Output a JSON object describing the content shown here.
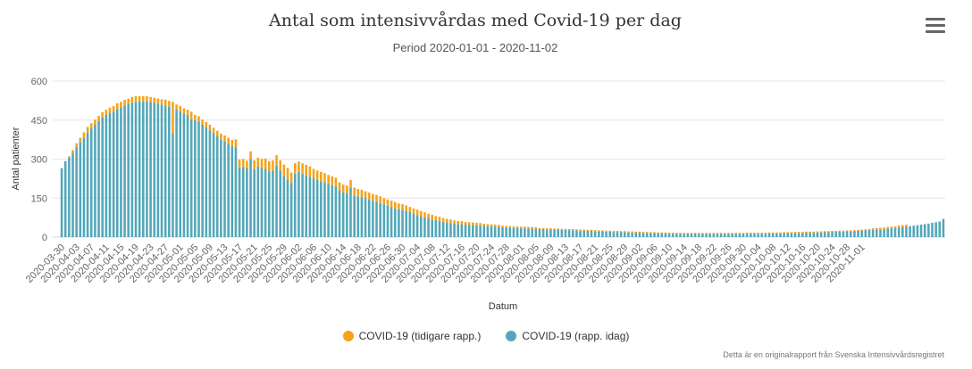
{
  "title": "Antal som intensivvårdas med Covid-19 per dag",
  "subtitle": "Period 2020-01-01 - 2020-11-02",
  "credit": "Detta är en originalrapport från Svenska Intensivvårdsregistret",
  "menu_icon": "hamburger-menu-icon",
  "colors": {
    "earlier": "#f7a21b",
    "today": "#53a7b9",
    "grid": "#e6e6e6",
    "axis_text": "#666666"
  },
  "chart_data": {
    "type": "bar",
    "stacked": true,
    "title": "Antal som intensivvårdas med Covid-19 per dag",
    "subtitle": "Period 2020-01-01 - 2020-11-02",
    "xlabel": "Datum",
    "ylabel": "Antal patienter",
    "ylim": [
      0,
      600
    ],
    "yticks": [
      0,
      150,
      300,
      450,
      600
    ],
    "grid": true,
    "legend_position": "bottom-center",
    "start_date": "2020-03-30",
    "end_date": "2020-11-02",
    "x_tick_labels": [
      "2020-03-30",
      "2020-04-03",
      "2020-04-07",
      "2020-04-11",
      "2020-04-15",
      "2020-04-19",
      "2020-04-23",
      "2020-04-27",
      "2020-05-01",
      "2020-05-05",
      "2020-05-09",
      "2020-05-13",
      "2020-05-17",
      "2020-05-21",
      "2020-05-25",
      "2020-05-29",
      "2020-06-02",
      "2020-06-06",
      "2020-06-10",
      "2020-06-14",
      "2020-06-18",
      "2020-06-22",
      "2020-06-26",
      "2020-06-30",
      "2020-07-04",
      "2020-07-08",
      "2020-07-12",
      "2020-07-16",
      "2020-07-20",
      "2020-07-24",
      "2020-07-28",
      "2020-08-01",
      "2020-08-05",
      "2020-08-09",
      "2020-08-13",
      "2020-08-17",
      "2020-08-21",
      "2020-08-25",
      "2020-08-29",
      "2020-09-02",
      "2020-09-06",
      "2020-09-10",
      "2020-09-14",
      "2020-09-18",
      "2020-09-22",
      "2020-09-26",
      "2020-09-30",
      "2020-10-04",
      "2020-10-08",
      "2020-10-12",
      "2020-10-16",
      "2020-10-20",
      "2020-10-24",
      "2020-10-28",
      "2020-11-01"
    ],
    "series": [
      {
        "name": "COVID-19 (tidigare rapp.)",
        "color": "#f7a21b",
        "values": [
          0,
          0,
          6,
          10,
          14,
          16,
          20,
          22,
          20,
          20,
          20,
          20,
          20,
          20,
          22,
          22,
          20,
          22,
          20,
          22,
          22,
          20,
          20,
          20,
          20,
          20,
          20,
          20,
          22,
          22,
          120,
          20,
          20,
          20,
          20,
          30,
          20,
          20,
          20,
          20,
          22,
          20,
          20,
          24,
          24,
          24,
          24,
          30,
          30,
          30,
          30,
          30,
          34,
          34,
          34,
          40,
          40,
          40,
          40,
          40,
          44,
          44,
          40,
          40,
          40,
          40,
          40,
          40,
          36,
          36,
          36,
          36,
          34,
          34,
          34,
          30,
          30,
          30,
          30,
          30,
          28,
          28,
          26,
          26,
          26,
          26,
          26,
          24,
          24,
          24,
          24,
          22,
          22,
          22,
          20,
          20,
          20,
          20,
          20,
          18,
          18,
          16,
          16,
          14,
          14,
          14,
          12,
          12,
          12,
          10,
          10,
          10,
          10,
          10,
          8,
          8,
          8,
          8,
          8,
          6,
          6,
          6,
          6,
          6,
          6,
          6,
          6,
          6,
          6,
          4,
          4,
          4,
          4,
          4,
          4,
          4,
          4,
          4,
          4,
          4,
          4,
          4,
          4,
          4,
          4,
          4,
          4,
          4,
          4,
          4,
          4,
          4,
          4,
          4,
          4,
          4,
          4,
          4,
          4,
          4,
          4,
          4,
          4,
          4,
          4,
          4,
          4,
          4,
          4,
          4,
          4,
          4,
          4,
          4,
          4,
          4,
          4,
          4,
          4,
          4,
          4,
          4,
          4,
          4,
          4,
          4,
          4,
          4,
          4,
          4,
          4,
          4,
          4,
          4,
          4,
          4,
          4,
          4,
          4,
          4,
          4,
          4,
          4,
          4,
          4,
          4,
          4,
          4,
          4,
          4,
          4,
          4,
          4,
          4,
          4,
          4,
          4,
          4,
          4,
          6,
          6,
          6,
          6,
          6,
          6,
          6,
          8,
          8,
          8
        ]
      },
      {
        "name": "COVID-19 (rapp. idag)",
        "color": "#53a7b9",
        "values": [
          265,
          292,
          305,
          325,
          347,
          366,
          383,
          402,
          418,
          432,
          446,
          460,
          470,
          478,
          482,
          493,
          500,
          506,
          512,
          517,
          520,
          522,
          522,
          522,
          519,
          516,
          513,
          510,
          507,
          502,
          400,
          490,
          484,
          475,
          470,
          452,
          450,
          445,
          432,
          423,
          410,
          400,
          389,
          374,
          367,
          358,
          350,
          346,
          268,
          270,
          264,
          300,
          261,
          271,
          267,
          262,
          252,
          255,
          275,
          256,
          235,
          222,
          208,
          244,
          251,
          244,
          238,
          232,
          226,
          220,
          215,
          210,
          205,
          200,
          195,
          180,
          172,
          168,
          190,
          160,
          157,
          154,
          150,
          145,
          140,
          136,
          131,
          126,
          121,
          116,
          111,
          107,
          105,
          100,
          96,
          90,
          85,
          80,
          75,
          72,
          68,
          65,
          62,
          59,
          56,
          54,
          52,
          50,
          49,
          48,
          47,
          46,
          45,
          44,
          43,
          42,
          41,
          40,
          39,
          38,
          37,
          36,
          35,
          35,
          34,
          34,
          33,
          33,
          32,
          31,
          31,
          30,
          30,
          29,
          29,
          28,
          28,
          27,
          27,
          26,
          25,
          25,
          24,
          24,
          23,
          22,
          22,
          21,
          21,
          20,
          20,
          19,
          19,
          18,
          18,
          17,
          17,
          16,
          16,
          15,
          15,
          14,
          14,
          14,
          13,
          13,
          13,
          12,
          12,
          12,
          12,
          12,
          12,
          12,
          12,
          12,
          12,
          12,
          12,
          12,
          12,
          12,
          12,
          12,
          12,
          13,
          13,
          13,
          13,
          13,
          13,
          14,
          14,
          14,
          14,
          15,
          15,
          15,
          16,
          16,
          16,
          17,
          17,
          17,
          18,
          18,
          19,
          19,
          20,
          20,
          21,
          21,
          22,
          22,
          23,
          24,
          25,
          26,
          27,
          28,
          29,
          30,
          31,
          33,
          34,
          35,
          37,
          38,
          40,
          42,
          44,
          46,
          48,
          50,
          52,
          55,
          57,
          60,
          70
        ]
      }
    ]
  }
}
